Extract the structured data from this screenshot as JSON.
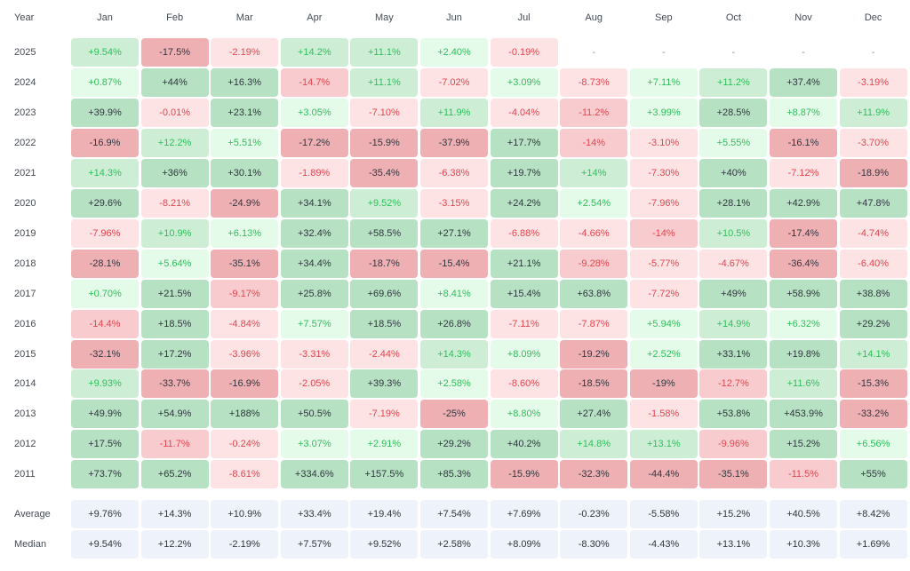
{
  "chart_data": {
    "type": "heatmap",
    "year_header": "Year",
    "columns": [
      "Jan",
      "Feb",
      "Mar",
      "Apr",
      "May",
      "Jun",
      "Jul",
      "Aug",
      "Sep",
      "Oct",
      "Nov",
      "Dec"
    ],
    "rows": [
      {
        "label": "2025",
        "values": [
          "+9.54%",
          "-17.5%",
          "-2.19%",
          "+14.2%",
          "+11.1%",
          "+2.40%",
          "-0.19%",
          "-",
          "-",
          "-",
          "-",
          "-"
        ]
      },
      {
        "label": "2024",
        "values": [
          "+0.87%",
          "+44%",
          "+16.3%",
          "-14.7%",
          "+11.1%",
          "-7.02%",
          "+3.09%",
          "-8.73%",
          "+7.11%",
          "+11.2%",
          "+37.4%",
          "-3.19%"
        ]
      },
      {
        "label": "2023",
        "values": [
          "+39.9%",
          "-0.01%",
          "+23.1%",
          "+3.05%",
          "-7.10%",
          "+11.9%",
          "-4.04%",
          "-11.2%",
          "+3.99%",
          "+28.5%",
          "+8.87%",
          "+11.9%"
        ]
      },
      {
        "label": "2022",
        "values": [
          "-16.9%",
          "+12.2%",
          "+5.51%",
          "-17.2%",
          "-15.9%",
          "-37.9%",
          "+17.7%",
          "-14%",
          "-3.10%",
          "+5.55%",
          "-16.1%",
          "-3.70%"
        ]
      },
      {
        "label": "2021",
        "values": [
          "+14.3%",
          "+36%",
          "+30.1%",
          "-1.89%",
          "-35.4%",
          "-6.38%",
          "+19.7%",
          "+14%",
          "-7.30%",
          "+40%",
          "-7.12%",
          "-18.9%"
        ]
      },
      {
        "label": "2020",
        "values": [
          "+29.6%",
          "-8.21%",
          "-24.9%",
          "+34.1%",
          "+9.52%",
          "-3.15%",
          "+24.2%",
          "+2.54%",
          "-7.96%",
          "+28.1%",
          "+42.9%",
          "+47.8%"
        ]
      },
      {
        "label": "2019",
        "values": [
          "-7.96%",
          "+10.9%",
          "+6.13%",
          "+32.4%",
          "+58.5%",
          "+27.1%",
          "-6.88%",
          "-4.66%",
          "-14%",
          "+10.5%",
          "-17.4%",
          "-4.74%"
        ]
      },
      {
        "label": "2018",
        "values": [
          "-28.1%",
          "+5.64%",
          "-35.1%",
          "+34.4%",
          "-18.7%",
          "-15.4%",
          "+21.1%",
          "-9.28%",
          "-5.77%",
          "-4.67%",
          "-36.4%",
          "-6.40%"
        ]
      },
      {
        "label": "2017",
        "values": [
          "+0.70%",
          "+21.5%",
          "-9.17%",
          "+25.8%",
          "+69.6%",
          "+8.41%",
          "+15.4%",
          "+63.8%",
          "-7.72%",
          "+49%",
          "+58.9%",
          "+38.8%"
        ]
      },
      {
        "label": "2016",
        "values": [
          "-14.4%",
          "+18.5%",
          "-4.84%",
          "+7.57%",
          "+18.5%",
          "+26.8%",
          "-7.11%",
          "-7.87%",
          "+5.94%",
          "+14.9%",
          "+6.32%",
          "+29.2%"
        ]
      },
      {
        "label": "2015",
        "values": [
          "-32.1%",
          "+17.2%",
          "-3.96%",
          "-3.31%",
          "-2.44%",
          "+14.3%",
          "+8.09%",
          "-19.2%",
          "+2.52%",
          "+33.1%",
          "+19.8%",
          "+14.1%"
        ]
      },
      {
        "label": "2014",
        "values": [
          "+9.93%",
          "-33.7%",
          "-16.9%",
          "-2.05%",
          "+39.3%",
          "+2.58%",
          "-8.60%",
          "-18.5%",
          "-19%",
          "-12.7%",
          "+11.6%",
          "-15.3%"
        ]
      },
      {
        "label": "2013",
        "values": [
          "+49.9%",
          "+54.9%",
          "+188%",
          "+50.5%",
          "-7.19%",
          "-25%",
          "+8.80%",
          "+27.4%",
          "-1.58%",
          "+53.8%",
          "+453.9%",
          "-33.2%"
        ]
      },
      {
        "label": "2012",
        "values": [
          "+17.5%",
          "-11.7%",
          "-0.24%",
          "+3.07%",
          "+2.91%",
          "+29.2%",
          "+40.2%",
          "+14.8%",
          "+13.1%",
          "-9.96%",
          "+15.2%",
          "+6.56%"
        ]
      },
      {
        "label": "2011",
        "values": [
          "+73.7%",
          "+65.2%",
          "-8.61%",
          "+334.6%",
          "+157.5%",
          "+85.3%",
          "-15.9%",
          "-32.3%",
          "-44.4%",
          "-35.1%",
          "-11.5%",
          "+55%"
        ]
      }
    ],
    "summary": [
      {
        "label": "Average",
        "values": [
          "+9.76%",
          "+14.3%",
          "+10.9%",
          "+33.4%",
          "+19.4%",
          "+7.54%",
          "+7.69%",
          "-0.23%",
          "-5.58%",
          "+15.2%",
          "+40.5%",
          "+8.42%"
        ]
      },
      {
        "label": "Median",
        "values": [
          "+9.54%",
          "+12.2%",
          "-2.19%",
          "+7.57%",
          "+9.52%",
          "+2.58%",
          "+8.09%",
          "-8.30%",
          "-4.43%",
          "+13.1%",
          "+10.3%",
          "+1.69%"
        ]
      }
    ],
    "colors": {
      "pos_light": "#e5fbe9",
      "pos_mid": "#cdeed5",
      "pos_dark": "#b6e1c2",
      "neg_light": "#fde3e4",
      "neg_mid": "#f8cccf",
      "neg_dark": "#efb0b4",
      "pos_text": "#2fbf5b",
      "neg_text": "#e3464f",
      "dark_text": "#2f3640",
      "summary_bg": "#eef2fa",
      "empty_text": "#8a8f98"
    }
  }
}
